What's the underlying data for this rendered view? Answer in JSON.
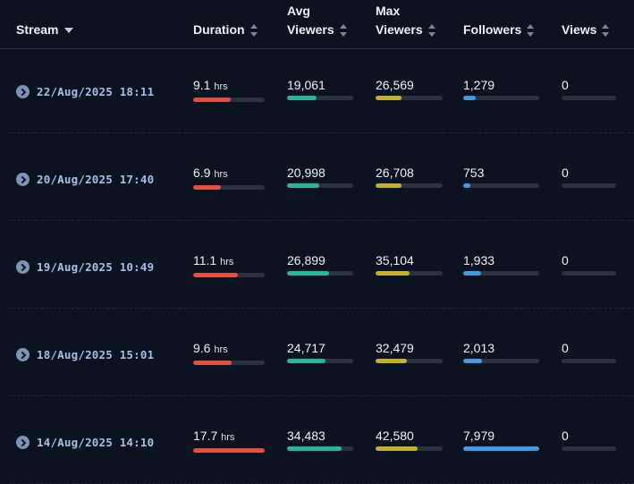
{
  "columns": {
    "stream": "Stream",
    "duration": "Duration",
    "avg_viewers": [
      "Avg",
      "Viewers"
    ],
    "max_viewers": [
      "Max",
      "Viewers"
    ],
    "followers": "Followers",
    "views": "Views"
  },
  "rows": [
    {
      "date": "22/Aug/2025 18:11",
      "duration": "9.1",
      "duration_unit": "hrs",
      "duration_fraction": 0.52,
      "avg_viewers": "19,061",
      "avg_fraction": 0.44,
      "max_viewers": "26,569",
      "max_fraction": 0.39,
      "followers": "1,279",
      "followers_fraction": 0.16,
      "views": "0",
      "views_fraction": 0
    },
    {
      "date": "20/Aug/2025 17:40",
      "duration": "6.9",
      "duration_unit": "hrs",
      "duration_fraction": 0.39,
      "avg_viewers": "20,998",
      "avg_fraction": 0.49,
      "max_viewers": "26,708",
      "max_fraction": 0.39,
      "followers": "753",
      "followers_fraction": 0.09,
      "views": "0",
      "views_fraction": 0
    },
    {
      "date": "19/Aug/2025 10:49",
      "duration": "11.1",
      "duration_unit": "hrs",
      "duration_fraction": 0.63,
      "avg_viewers": "26,899",
      "avg_fraction": 0.63,
      "max_viewers": "35,104",
      "max_fraction": 0.51,
      "followers": "1,933",
      "followers_fraction": 0.24,
      "views": "0",
      "views_fraction": 0
    },
    {
      "date": "18/Aug/2025 15:01",
      "duration": "9.6",
      "duration_unit": "hrs",
      "duration_fraction": 0.54,
      "avg_viewers": "24,717",
      "avg_fraction": 0.58,
      "max_viewers": "32,479",
      "max_fraction": 0.47,
      "followers": "2,013",
      "followers_fraction": 0.25,
      "views": "0",
      "views_fraction": 0
    },
    {
      "date": "14/Aug/2025 14:10",
      "duration": "17.7",
      "duration_unit": "hrs",
      "duration_fraction": 1.0,
      "avg_viewers": "34,483",
      "avg_fraction": 0.82,
      "max_viewers": "42,580",
      "max_fraction": 0.62,
      "followers": "7,979",
      "followers_fraction": 1.0,
      "views": "0",
      "views_fraction": 0
    }
  ],
  "colors": {
    "duration": "#e2513f",
    "avg_viewers": "#23b897",
    "max_viewers": "#c4b128",
    "followers": "#3f9be2",
    "views": "#2a3240"
  }
}
